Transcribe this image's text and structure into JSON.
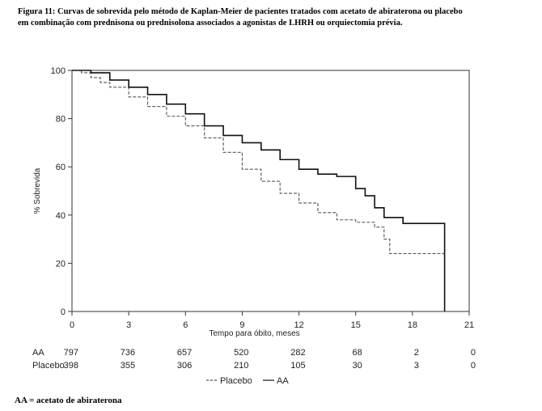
{
  "figure": {
    "caption_line1": "Figura 11: Curvas de sobrevida pelo método de Kaplan-Meier de pacientes tratados com acetato de abiraterona ou placebo",
    "caption_line2": "em combinação com prednisona ou prednisolona associados a agonistas de LHRH ou orquiectomia prévia.",
    "footnote": "AA = acetato de abiraterona"
  },
  "chart_data": {
    "type": "line",
    "xlabel": "Tempo para óbito, meses",
    "ylabel": "% Sobrevida",
    "xlim": [
      0,
      21
    ],
    "ylim": [
      0,
      100
    ],
    "xticks": [
      0,
      3,
      6,
      9,
      12,
      15,
      18,
      21
    ],
    "yticks": [
      0,
      20,
      40,
      60,
      80,
      100
    ],
    "grid": false,
    "legend_position": "bottom-center",
    "series": [
      {
        "name": "Placebo",
        "style": "dashed",
        "color": "#555555",
        "x": [
          0,
          0.5,
          1,
          1.5,
          2,
          3,
          4,
          5,
          6,
          7,
          8,
          9,
          10,
          11,
          12,
          13,
          14,
          15,
          16,
          16.5,
          16.8,
          19.7
        ],
        "y": [
          100,
          99,
          97,
          95,
          93,
          89,
          85,
          81,
          77,
          72,
          66,
          59,
          54,
          49,
          45,
          41,
          38,
          37,
          35,
          30,
          24,
          24
        ]
      },
      {
        "name": "AA",
        "style": "solid",
        "color": "#111111",
        "x": [
          0,
          0.5,
          1,
          2,
          3,
          4,
          5,
          6,
          7,
          8,
          9,
          10,
          11,
          12,
          13,
          14,
          15,
          15.5,
          16,
          16.5,
          17,
          17.5,
          19.7,
          19.7
        ],
        "y": [
          100,
          100,
          99,
          96,
          93,
          90,
          86,
          82,
          77,
          73,
          70,
          67,
          63,
          59,
          57,
          56,
          51,
          48,
          43,
          39,
          39,
          36.5,
          36.5,
          0
        ]
      }
    ],
    "risk_table": {
      "times": [
        "0",
        "3",
        "6",
        "9",
        "12",
        "15",
        "18",
        "21"
      ],
      "rows": [
        {
          "label": "AA",
          "counts": [
            "797",
            "736",
            "657",
            "520",
            "282",
            "68",
            "2",
            "0"
          ]
        },
        {
          "label": "Placebo",
          "counts": [
            "398",
            "355",
            "306",
            "210",
            "105",
            "30",
            "3",
            "0"
          ]
        }
      ]
    }
  }
}
